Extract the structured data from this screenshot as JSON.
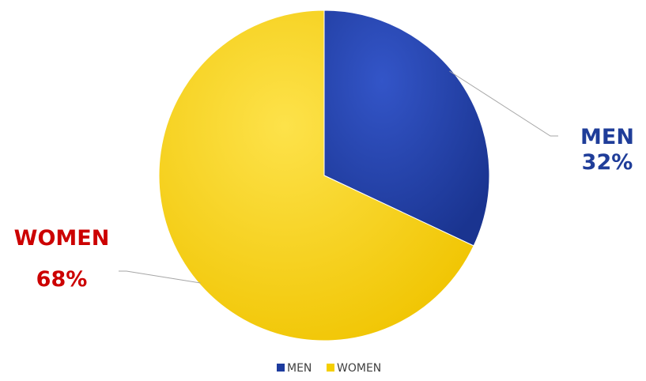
{
  "chart_data": {
    "type": "pie",
    "title": "",
    "legend_position": "bottom",
    "slices": [
      {
        "name": "MEN",
        "value": 32,
        "label_value": "32%",
        "color": "#1d3b9e",
        "label_color": "#1f3d99"
      },
      {
        "name": "WOMEN",
        "value": 68,
        "label_value": "68%",
        "color": "#f5cf00",
        "label_color": "#cc0000"
      }
    ]
  }
}
